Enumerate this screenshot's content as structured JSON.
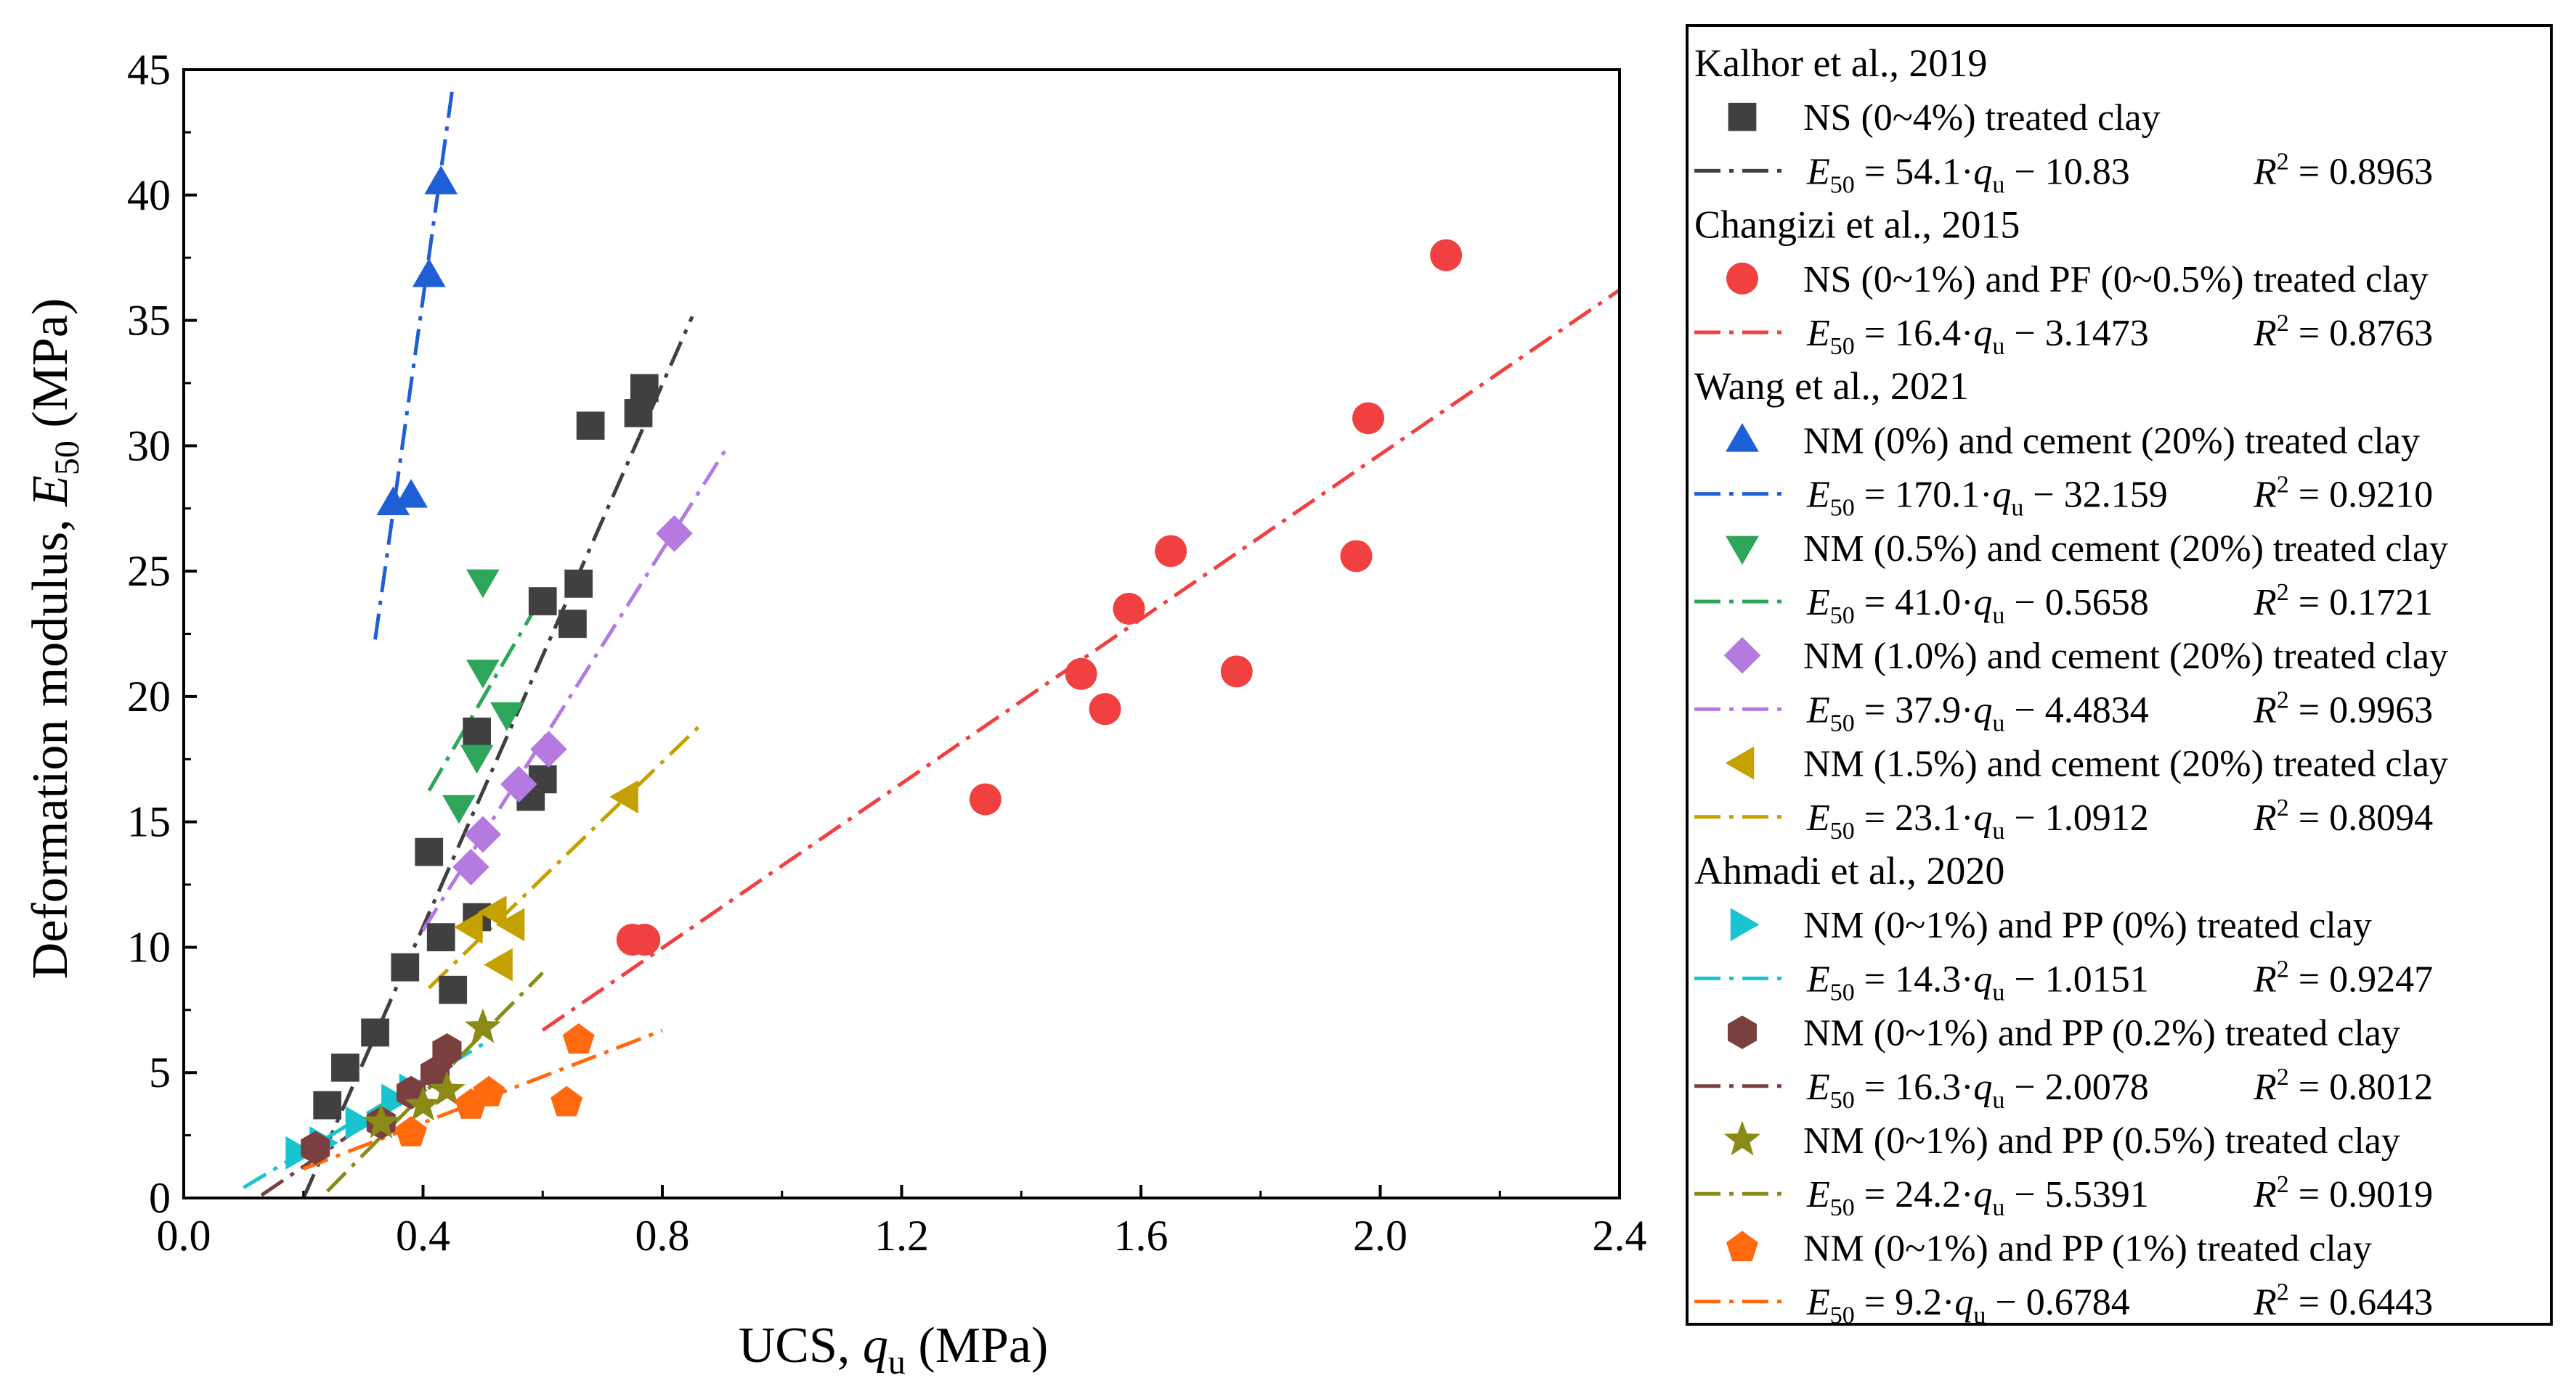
{
  "chart_data": {
    "type": "scatter",
    "xlabel_main": "UCS, ",
    "xlabel_var": "q",
    "xlabel_sub": "u",
    "xlabel_unit": " (MPa)",
    "ylabel_main": "Deformation modulus, ",
    "ylabel_var": "E",
    "ylabel_sub": "50",
    "ylabel_unit": " (MPa)",
    "xlim": [
      0.0,
      2.4
    ],
    "ylim": [
      0,
      45
    ],
    "x_ticks": [
      0.0,
      0.4,
      0.8,
      1.2,
      1.6,
      2.0,
      2.4
    ],
    "x_tick_labels": [
      "0.0",
      "0.4",
      "0.8",
      "1.2",
      "1.6",
      "2.0",
      "2.4"
    ],
    "y_ticks": [
      0,
      5,
      10,
      15,
      20,
      25,
      30,
      35,
      40,
      45
    ],
    "y_tick_labels": [
      "0",
      "5",
      "10",
      "15",
      "20",
      "25",
      "30",
      "35",
      "40",
      "45"
    ],
    "legend_groups": [
      {
        "title": "Kalhor et al., 2019",
        "series_indices": [
          0
        ]
      },
      {
        "title": "Changizi et al., 2015",
        "series_indices": [
          1
        ]
      },
      {
        "title": "Wang et al., 2021",
        "series_indices": [
          2,
          3,
          4,
          5
        ]
      },
      {
        "title": "Ahmadi et al., 2020",
        "series_indices": [
          6,
          7,
          8,
          9
        ]
      }
    ],
    "series": [
      {
        "name": "NS (0~4%) treated clay",
        "marker": "square",
        "color": "#404040",
        "eq_slope": "54.1",
        "eq_intercept": "10.83",
        "r2": "0.8963",
        "fit": {
          "slope": 54.1,
          "intercept": -10.83,
          "x_range": [
            0.2,
            0.85
          ]
        },
        "points": [
          [
            0.24,
            3.7
          ],
          [
            0.27,
            5.2
          ],
          [
            0.32,
            6.6
          ],
          [
            0.37,
            9.2
          ],
          [
            0.41,
            13.8
          ],
          [
            0.43,
            10.4
          ],
          [
            0.45,
            8.3
          ],
          [
            0.49,
            11.2
          ],
          [
            0.49,
            18.6
          ],
          [
            0.58,
            16.0
          ],
          [
            0.6,
            16.7
          ],
          [
            0.6,
            23.8
          ],
          [
            0.65,
            22.9
          ],
          [
            0.66,
            24.5
          ],
          [
            0.68,
            30.8
          ],
          [
            0.76,
            31.3
          ],
          [
            0.77,
            32.3
          ]
        ]
      },
      {
        "name": "NS (0~1%) and PF (0~0.5%) treated clay",
        "marker": "circle",
        "color": "#f04040",
        "eq_slope": "16.4",
        "eq_intercept": "3.1473",
        "r2": "0.8763",
        "fit": {
          "slope": 16.4,
          "intercept": -3.1473,
          "x_range": [
            0.6,
            2.4
          ]
        },
        "points": [
          [
            0.75,
            10.3
          ],
          [
            0.77,
            10.3
          ],
          [
            1.34,
            15.9
          ],
          [
            1.5,
            20.9
          ],
          [
            1.54,
            19.5
          ],
          [
            1.58,
            23.5
          ],
          [
            1.65,
            25.8
          ],
          [
            1.76,
            21.0
          ],
          [
            1.96,
            25.6
          ],
          [
            1.98,
            31.1
          ],
          [
            2.11,
            37.6
          ]
        ]
      },
      {
        "name": "NM (0%) and cement (20%) treated clay",
        "marker": "triangle-up",
        "color": "#1f5fd6",
        "eq_slope": "170.1",
        "eq_intercept": "32.159",
        "r2": "0.9210",
        "fit": {
          "slope": 170.1,
          "intercept": -32.159,
          "x_range": [
            0.32,
            0.45
          ]
        },
        "points": [
          [
            0.35,
            27.7
          ],
          [
            0.38,
            28.0
          ],
          [
            0.41,
            36.8
          ],
          [
            0.43,
            40.5
          ]
        ]
      },
      {
        "name": "NM (0.5%) and cement (20%) treated clay",
        "marker": "triangle-down",
        "color": "#2ea65a",
        "eq_slope": "41.0",
        "eq_intercept": "0.5658",
        "r2": "0.1721",
        "fit": {
          "slope": 41.0,
          "intercept": -0.5658,
          "x_range": [
            0.41,
            0.6
          ]
        },
        "points": [
          [
            0.46,
            15.6
          ],
          [
            0.49,
            17.6
          ],
          [
            0.5,
            21.0
          ],
          [
            0.5,
            24.6
          ],
          [
            0.54,
            19.3
          ]
        ]
      },
      {
        "name": "NM (1.0%) and cement (20%) treated clay",
        "marker": "diamond",
        "color": "#b57ae0",
        "eq_slope": "37.9",
        "eq_intercept": "4.4834",
        "r2": "0.9963",
        "fit": {
          "slope": 37.9,
          "intercept": -4.4834,
          "x_range": [
            0.4,
            0.91
          ]
        },
        "points": [
          [
            0.48,
            13.2
          ],
          [
            0.5,
            14.5
          ],
          [
            0.56,
            16.5
          ],
          [
            0.61,
            17.9
          ],
          [
            0.82,
            26.5
          ]
        ]
      },
      {
        "name": "NM (1.5%) and cement (20%) treated clay",
        "marker": "triangle-left",
        "color": "#c4a000",
        "eq_slope": "23.1",
        "eq_intercept": "1.0912",
        "r2": "0.8094",
        "fit": {
          "slope": 23.1,
          "intercept": -1.0912,
          "x_range": [
            0.41,
            0.86
          ]
        },
        "points": [
          [
            0.48,
            10.8
          ],
          [
            0.52,
            11.4
          ],
          [
            0.53,
            9.3
          ],
          [
            0.55,
            10.9
          ],
          [
            0.74,
            16.0
          ]
        ]
      },
      {
        "name": "NM (0~1%) and PP (0%) treated clay",
        "marker": "triangle-right",
        "color": "#17c4cf",
        "eq_slope": "14.3",
        "eq_intercept": "1.0151",
        "r2": "0.9247",
        "fit": {
          "slope": 14.3,
          "intercept": -1.0151,
          "x_range": [
            0.1,
            0.5
          ]
        },
        "points": [
          [
            0.19,
            1.8
          ],
          [
            0.23,
            2.2
          ],
          [
            0.29,
            3.0
          ],
          [
            0.35,
            3.9
          ],
          [
            0.38,
            4.3
          ]
        ]
      },
      {
        "name": "NM (0~1%) and PP (0.2%) treated clay",
        "marker": "hexagon",
        "color": "#7a4040",
        "eq_slope": "16.3",
        "eq_intercept": "2.0078",
        "r2": "0.8012",
        "fit": {
          "slope": 16.3,
          "intercept": -2.0078,
          "x_range": [
            0.13,
            0.46
          ]
        },
        "points": [
          [
            0.22,
            2.0
          ],
          [
            0.33,
            3.0
          ],
          [
            0.38,
            4.2
          ],
          [
            0.42,
            5.0
          ],
          [
            0.44,
            5.9
          ]
        ]
      },
      {
        "name": "NM (0~1%) and PP (0.5%) treated clay",
        "marker": "star",
        "color": "#8a8a16",
        "eq_slope": "24.2",
        "eq_intercept": "5.5391",
        "r2": "0.9019",
        "fit": {
          "slope": 24.2,
          "intercept": -5.5391,
          "x_range": [
            0.24,
            0.6
          ]
        },
        "points": [
          [
            0.33,
            3.0
          ],
          [
            0.4,
            3.7
          ],
          [
            0.44,
            4.3
          ],
          [
            0.5,
            6.8
          ]
        ]
      },
      {
        "name": "NM (0~1%) and PP (1%) treated clay",
        "marker": "pentagon",
        "color": "#ff6a0f",
        "eq_slope": "9.2",
        "eq_intercept": "0.6784",
        "r2": "0.6443",
        "fit": {
          "slope": 9.2,
          "intercept": -0.6784,
          "x_range": [
            0.2,
            0.8
          ]
        },
        "points": [
          [
            0.38,
            2.6
          ],
          [
            0.48,
            3.7
          ],
          [
            0.51,
            4.2
          ],
          [
            0.64,
            3.8
          ],
          [
            0.66,
            6.3
          ]
        ]
      }
    ]
  }
}
